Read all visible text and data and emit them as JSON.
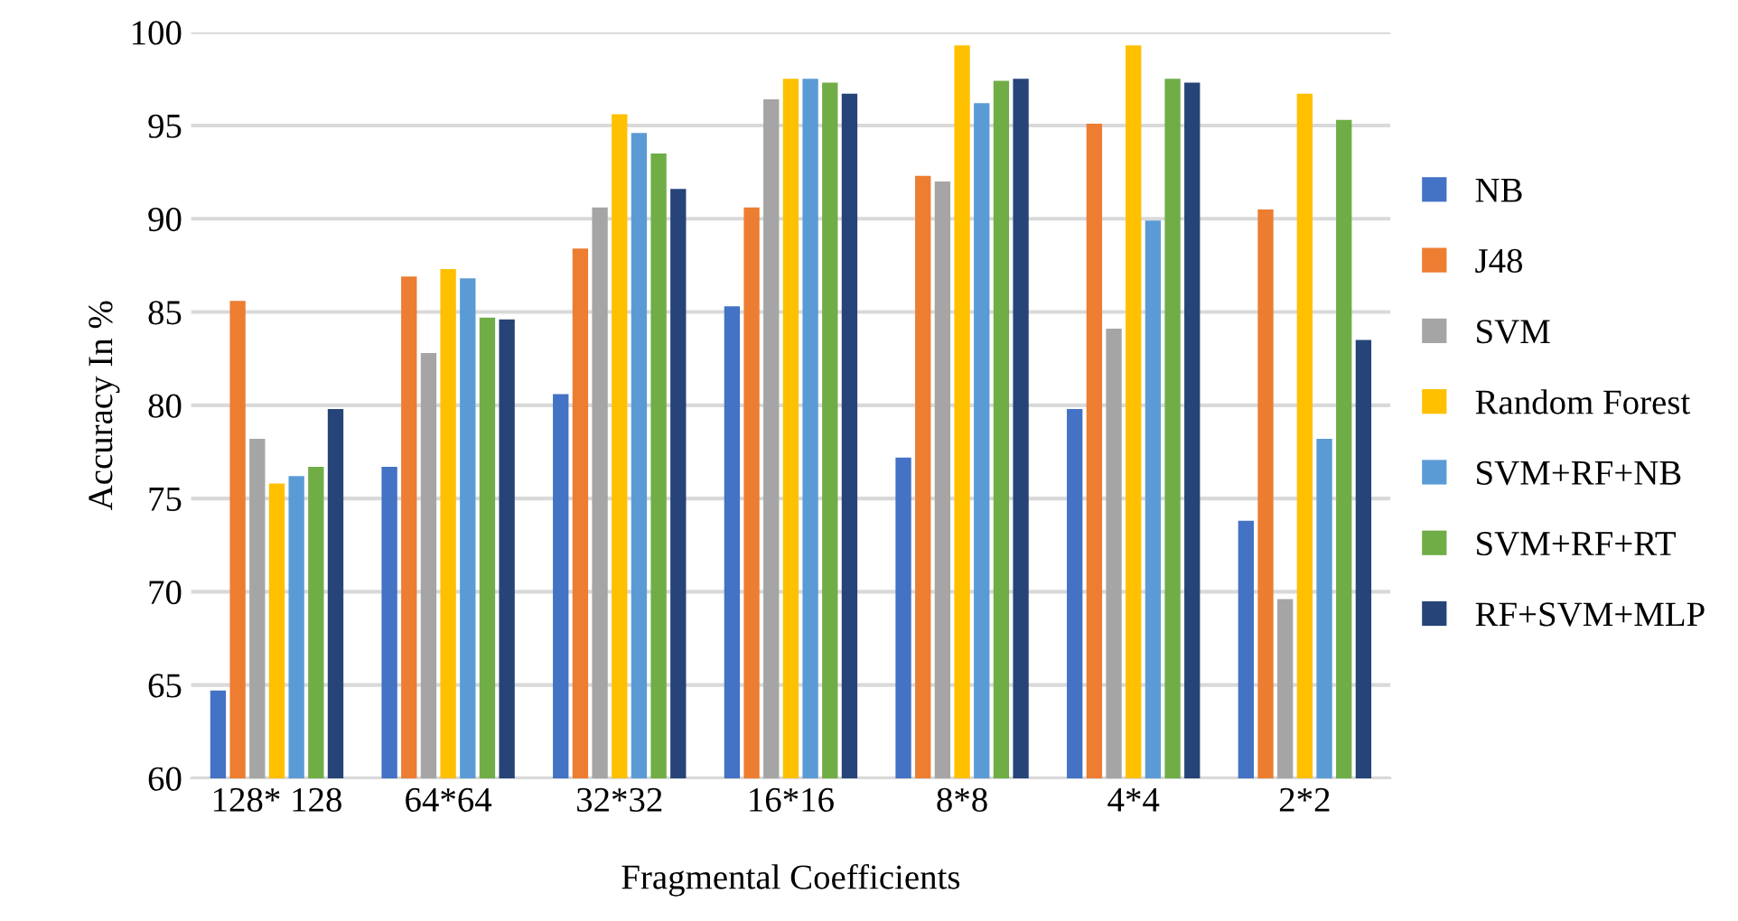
{
  "chart_data": {
    "type": "bar",
    "xlabel": "Fragmental Coefficients",
    "ylabel": "Accuracy In %",
    "categories": [
      "128* 128",
      "64*64",
      "32*32",
      "16*16",
      "8*8",
      "4*4",
      "2*2"
    ],
    "series": [
      {
        "name": "NB",
        "color": "#4472c4",
        "values": [
          64.7,
          76.7,
          80.6,
          85.3,
          77.2,
          79.8,
          73.8
        ]
      },
      {
        "name": "J48",
        "color": "#ed7d31",
        "values": [
          85.6,
          86.9,
          88.4,
          90.6,
          92.3,
          95.1,
          90.5
        ]
      },
      {
        "name": "SVM",
        "color": "#a5a5a5",
        "values": [
          78.2,
          82.8,
          90.6,
          96.4,
          92.0,
          84.1,
          69.6
        ]
      },
      {
        "name": "Random Forest",
        "color": "#ffc000",
        "values": [
          75.8,
          87.3,
          95.6,
          97.5,
          99.3,
          99.3,
          96.7
        ]
      },
      {
        "name": "SVM+RF+NB",
        "color": "#5b9bd5",
        "values": [
          76.2,
          86.8,
          94.6,
          97.5,
          96.2,
          89.9,
          78.2
        ]
      },
      {
        "name": "SVM+RF+RT",
        "color": "#70ad47",
        "values": [
          76.7,
          84.7,
          93.5,
          97.3,
          97.4,
          97.5,
          95.3
        ]
      },
      {
        "name": "RF+SVM+MLP",
        "color": "#264478",
        "values": [
          79.8,
          84.6,
          91.6,
          96.7,
          97.5,
          97.3,
          83.5
        ]
      }
    ],
    "ylim": [
      60,
      100
    ],
    "yticks": [
      60,
      65,
      70,
      75,
      80,
      85,
      90,
      95,
      100
    ],
    "grid": "y",
    "legend": "right"
  }
}
